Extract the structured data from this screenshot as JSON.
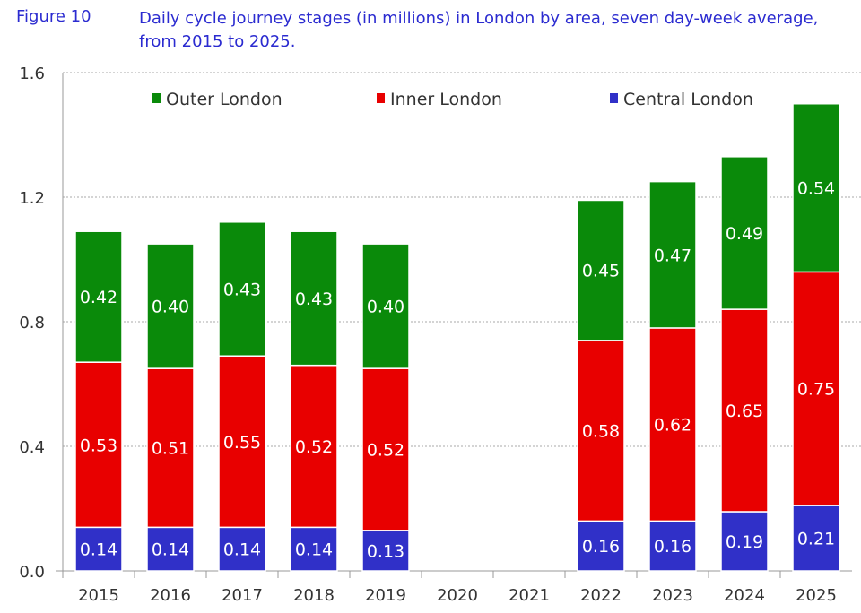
{
  "figure_label": "Figure 10",
  "chart_data": {
    "type": "bar",
    "stacked": true,
    "title": "Daily cycle journey stages (in millions) in London by area, seven day-week average, from 2015 to 2025.",
    "xlabel": "",
    "ylabel": "",
    "ylim": [
      0,
      1.6
    ],
    "yticks": [
      "0.0",
      "0.4",
      "0.8",
      "1.2",
      "1.6"
    ],
    "grid": "horizontal dotted",
    "legend_placement": "top",
    "categories": [
      "2015",
      "2016",
      "2017",
      "2018",
      "2019",
      "2020",
      "2021",
      "2022",
      "2023",
      "2024",
      "2025"
    ],
    "series": [
      {
        "name": "Central London",
        "color": "#3030c8",
        "values": [
          0.14,
          0.14,
          0.14,
          0.14,
          0.13,
          null,
          null,
          0.16,
          0.16,
          0.19,
          0.21
        ],
        "labels": [
          "0.14",
          "0.14",
          "0.14",
          "0.14",
          "0.13",
          "",
          "",
          "0.16",
          "0.16",
          "0.19",
          "0.21"
        ]
      },
      {
        "name": "Inner London",
        "color": "#e80000",
        "values": [
          0.53,
          0.51,
          0.55,
          0.52,
          0.52,
          null,
          null,
          0.58,
          0.62,
          0.65,
          0.75
        ],
        "labels": [
          "0.53",
          "0.51",
          "0.55",
          "0.52",
          "0.52",
          "",
          "",
          "0.58",
          "0.62",
          "0.65",
          "0.75"
        ]
      },
      {
        "name": "Outer London",
        "color": "#0a8a0a",
        "values": [
          0.42,
          0.4,
          0.43,
          0.43,
          0.4,
          null,
          null,
          0.45,
          0.47,
          0.49,
          0.54
        ],
        "labels": [
          "0.42",
          "0.40",
          "0.43",
          "0.43",
          "0.40",
          "",
          "",
          "0.45",
          "0.47",
          "0.49",
          "0.54"
        ]
      }
    ],
    "legend_order": [
      "Outer London",
      "Inner London",
      "Central London"
    ]
  }
}
